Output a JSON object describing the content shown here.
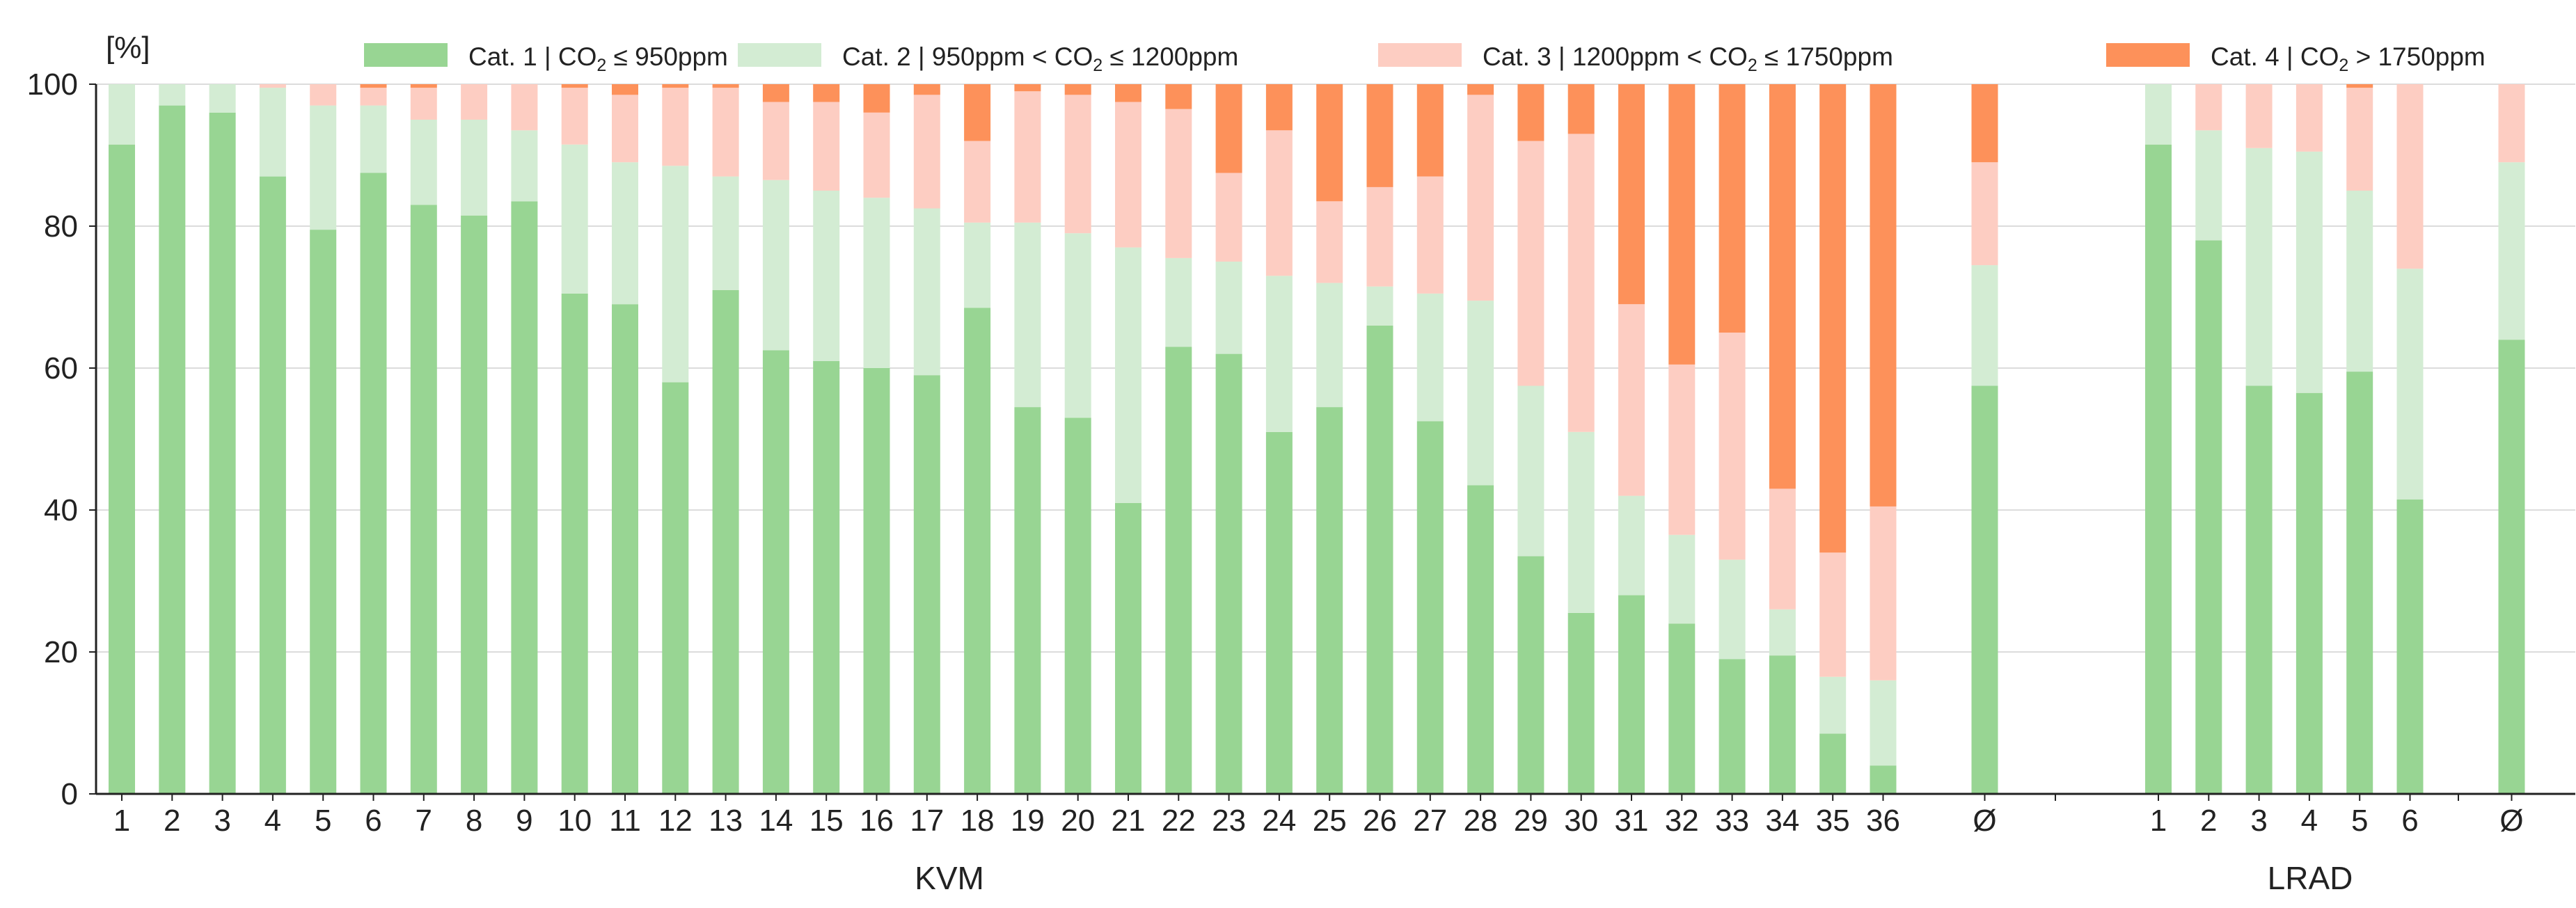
{
  "chart_data": {
    "type": "bar",
    "stacked": true,
    "ylabel": "[%]",
    "ylim": [
      0,
      100
    ],
    "yticks": [
      0,
      20,
      40,
      60,
      80,
      100
    ],
    "grid": "horizontal",
    "legend_position": "top",
    "colors": {
      "cat1": "#98d593",
      "cat2": "#d3ecd3",
      "cat3": "#fdcdc2",
      "cat4": "#fd915a"
    },
    "legend": [
      {
        "key": "cat1",
        "label": "Cat. 1 | CO",
        "sub": "2",
        "rest": " ≤ 950ppm"
      },
      {
        "key": "cat2",
        "label": "Cat. 2 | 950ppm < CO",
        "sub": "2",
        "rest": " ≤ 1200ppm"
      },
      {
        "key": "cat3",
        "label": "Cat. 3 | 1200ppm < CO",
        "sub": "2",
        "rest": " ≤ 1750ppm"
      },
      {
        "key": "cat4",
        "label": "Cat. 4 | CO",
        "sub": "2",
        "rest": " > 1750ppm"
      }
    ],
    "groups": [
      {
        "name": "KVM",
        "categories": [
          "1",
          "2",
          "3",
          "4",
          "5",
          "6",
          "7",
          "8",
          "9",
          "10",
          "11",
          "12",
          "13",
          "14",
          "15",
          "16",
          "17",
          "18",
          "19",
          "20",
          "21",
          "22",
          "23",
          "24",
          "25",
          "26",
          "27",
          "28",
          "29",
          "30",
          "31",
          "32",
          "33",
          "34",
          "35",
          "36",
          "Ø"
        ],
        "series": [
          {
            "name": "cat1",
            "values": [
              91.5,
              97,
              96,
              87,
              79.5,
              87.5,
              83,
              81.5,
              83.5,
              70.5,
              69,
              58,
              71,
              62.5,
              61,
              60,
              59,
              68.5,
              54.5,
              53,
              41,
              63,
              62,
              51,
              54.5,
              66,
              52.5,
              43.5,
              33.5,
              25.5,
              28,
              24,
              19,
              19.5,
              8.5,
              4,
              57.5
            ]
          },
          {
            "name": "cat2",
            "values": [
              8.5,
              3,
              4,
              12.5,
              17.5,
              9.5,
              12,
              13.5,
              10,
              21,
              20,
              30.5,
              16,
              24,
              24,
              24,
              23.5,
              12,
              26,
              26,
              36,
              12.5,
              13,
              22,
              17.5,
              5.5,
              18,
              26,
              24,
              25.5,
              14,
              12.5,
              14,
              6.5,
              8,
              12,
              17
            ]
          },
          {
            "name": "cat3",
            "values": [
              0,
              0,
              0,
              0.5,
              3,
              2.5,
              4.5,
              5,
              6.5,
              8,
              9.5,
              11,
              12.5,
              11,
              12.5,
              12,
              16,
              11.5,
              18.5,
              19.5,
              20.5,
              21,
              12.5,
              20.5,
              11.5,
              14,
              16.5,
              29,
              34.5,
              42,
              27,
              24,
              32,
              17,
              17.5,
              24.5,
              14.5
            ]
          },
          {
            "name": "cat4",
            "values": [
              0,
              0,
              0,
              0,
              0,
              0.5,
              0.5,
              0,
              0,
              0.5,
              1.5,
              0.5,
              0.5,
              2.5,
              2.5,
              4,
              1.5,
              8,
              1,
              1.5,
              2.5,
              3.5,
              12.5,
              6.5,
              16.5,
              14.5,
              13,
              1.5,
              8,
              7,
              31,
              39.5,
              35,
              57,
              66,
              59.5,
              11
            ]
          }
        ]
      },
      {
        "name": "LRAD",
        "categories": [
          "1",
          "2",
          "3",
          "4",
          "5",
          "6",
          "Ø"
        ],
        "series": [
          {
            "name": "cat1",
            "values": [
              91.5,
              78,
              57.5,
              56.5,
              59.5,
              41.5,
              64
            ]
          },
          {
            "name": "cat2",
            "values": [
              8.5,
              15.5,
              33.5,
              34,
              25.5,
              32.5,
              25
            ]
          },
          {
            "name": "cat3",
            "values": [
              0,
              6.5,
              9,
              9.5,
              14.5,
              26,
              11
            ]
          },
          {
            "name": "cat4",
            "values": [
              0,
              0,
              0,
              0,
              0.5,
              0,
              0
            ]
          }
        ]
      }
    ]
  }
}
